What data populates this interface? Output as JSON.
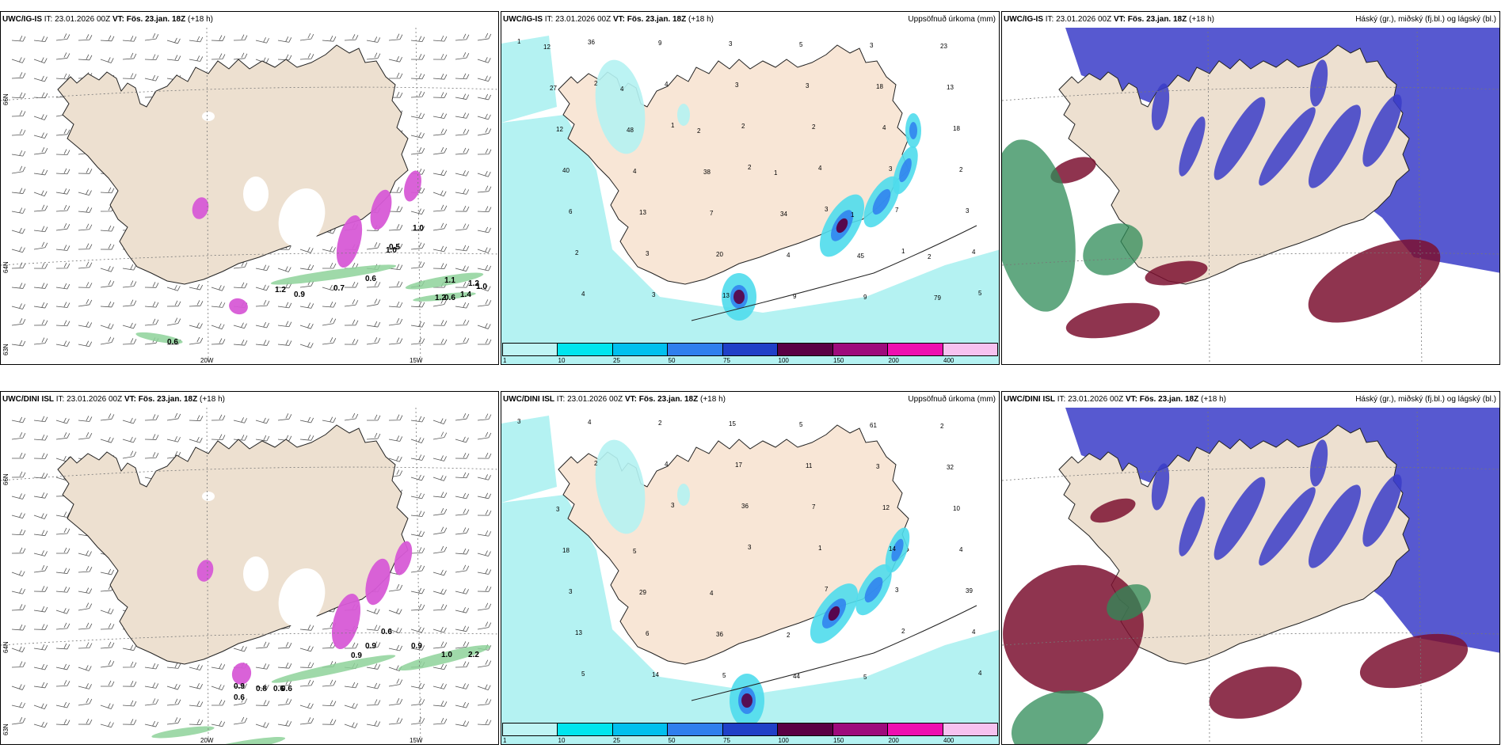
{
  "panels": [
    {
      "model": "UWC/IG-IS",
      "it": "IT: 23.01.2026 00Z",
      "vt_label": "VT:",
      "vt": "Fös. 23.jan. 18Z",
      "lead": "(+18 h)",
      "right": ""
    },
    {
      "model": "UWC/IG-IS",
      "it": "IT: 23.01.2026 00Z",
      "vt_label": "VT:",
      "vt": "Fös. 23.jan. 18Z",
      "lead": "(+18 h)",
      "right": "Uppsöfnuð úrkoma (mm)"
    },
    {
      "model": "UWC/IG-IS",
      "it": "IT: 23.01.2026 00Z",
      "vt_label": "VT:",
      "vt": "Fös. 23.jan. 18Z",
      "lead": "(+18 h)",
      "right": "Háský (gr.), miðský (fj.bl.) og lágský (bl.)"
    },
    {
      "model": "UWC/DINI ISL",
      "it": "IT: 23.01.2026 00Z",
      "vt_label": "VT:",
      "vt": "Fös. 23.jan. 18Z",
      "lead": "(+18 h)",
      "right": ""
    },
    {
      "model": "UWC/DINI ISL",
      "it": "IT: 23.01.2026 00Z",
      "vt_label": "VT:",
      "vt": "Fös. 23.jan. 18Z",
      "lead": "(+18 h)",
      "right": "Uppsöfnuð úrkoma (mm)"
    },
    {
      "model": "UWC/DINI ISL",
      "it": "IT: 23.01.2026 00Z",
      "vt_label": "VT:",
      "vt": "Fös. 23.jan. 18Z",
      "lead": "(+18 h)",
      "right": "Háský (gr.), miðský (fj.bl.) og lágský (bl.)"
    }
  ],
  "grid_labels": {
    "lat66": "66N",
    "lat64": "64N",
    "lat63": "63N",
    "lat65": "65N",
    "lon20": "20W",
    "lon15": "15W"
  },
  "colorbar": {
    "ticks": [
      "1",
      "10",
      "25",
      "50",
      "75",
      "100",
      "150",
      "200",
      "400"
    ],
    "colors": [
      "#bff5f5",
      "#00e5ee",
      "#00c0ee",
      "#2f7fee",
      "#2040c8",
      "#5a0044",
      "#9e0a7c",
      "#ee10b0",
      "#f7c2f0"
    ]
  },
  "colors": {
    "land": "#ede0d0",
    "sea_precip": "#b4f2f2",
    "high_cloud": "#2e8b57",
    "mid_cloud": "#7b1030",
    "low_cloud": "#3a3cc8",
    "cyan": "#4fdcec"
  },
  "precip_labels_top": [
    "1",
    "2",
    "1",
    "2",
    "3",
    "1",
    "5",
    "36",
    "4",
    "2",
    "4",
    "7",
    "4",
    "4",
    "9",
    "3",
    "2",
    "3",
    "3",
    "2",
    "3",
    "3",
    "3",
    "4",
    "2",
    "6",
    "3",
    "13",
    "5",
    "18",
    "18",
    "40",
    "13",
    "20",
    "9",
    "3",
    "13",
    "12",
    "4",
    "7",
    "4",
    "9",
    "23",
    "27",
    "48",
    "38",
    "34",
    "45",
    "79",
    "12",
    "4",
    "2",
    "1",
    "1",
    "2"
  ],
  "precip_labels_bottom": [
    "3",
    "2",
    "3",
    "3",
    "7",
    "2",
    "4",
    "4",
    "4",
    "36",
    "1",
    "3",
    "4",
    "5",
    "2",
    "17",
    "7",
    "14",
    "39",
    "13",
    "14",
    "15",
    "11",
    "12",
    "4",
    "3",
    "6",
    "5",
    "5",
    "3",
    "10",
    "18",
    "29",
    "36",
    "44",
    "61",
    "32",
    "3",
    "5",
    "4",
    "2",
    "5",
    "2"
  ],
  "panel1_labels": [
    "1.0",
    "1.0",
    "1.2",
    "0.9",
    "0.7",
    "0.6",
    "1.1",
    "1.2",
    "1.0",
    "1.4",
    "1.2",
    "0.6",
    "0.6",
    "0.5"
  ],
  "panel4_labels": [
    "0.9",
    "0.6",
    "0.8",
    "0.6",
    "0.6",
    "0.9",
    "0.9",
    "1.0",
    "2.2",
    "0.9",
    "0.6"
  ]
}
